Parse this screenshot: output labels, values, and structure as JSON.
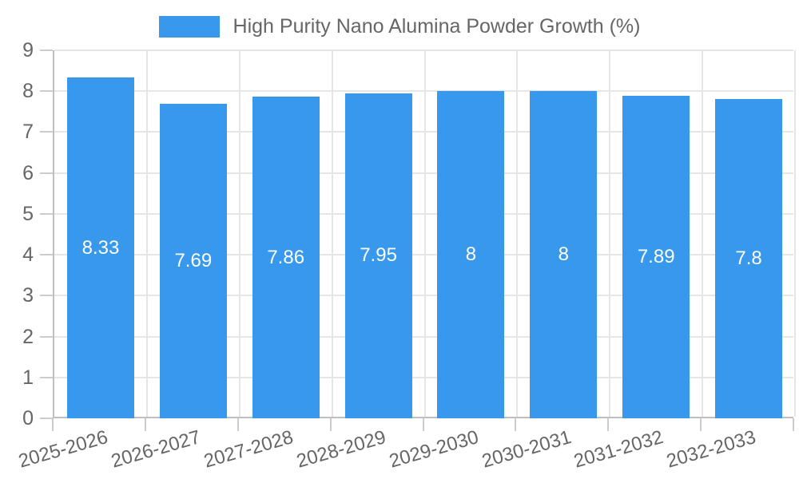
{
  "legend": {
    "swatch_color": "#3899EC",
    "label": "High Purity Nano Alumina Powder Growth (%)"
  },
  "chart_data": {
    "type": "bar",
    "title": "High Purity Nano Alumina Powder Growth (%)",
    "categories": [
      "2025-2026",
      "2026-2027",
      "2027-2028",
      "2028-2029",
      "2029-2030",
      "2030-2031",
      "2031-2032",
      "2032-2033"
    ],
    "series": [
      {
        "name": "High Purity Nano Alumina Powder Growth (%)",
        "values": [
          8.33,
          7.69,
          7.86,
          7.95,
          8,
          8,
          7.89,
          7.8
        ],
        "value_labels": [
          "8.33",
          "7.69",
          "7.86",
          "7.95",
          "8",
          "8",
          "7.89",
          "7.8"
        ],
        "color": "#3899EC"
      }
    ],
    "xlabel": "",
    "ylabel": "",
    "ylim": [
      0,
      9
    ],
    "yticks": [
      0,
      1,
      2,
      3,
      4,
      5,
      6,
      7,
      8,
      9
    ],
    "grid": true,
    "legend_position": "top",
    "value_label_position": "center-of-bar",
    "value_label_color": "#ffffff",
    "x_tick_rotation_deg": -16
  },
  "style": {
    "background": "#ffffff",
    "bar_color": "#3899EC",
    "grid_color": "#e6e6e6",
    "axis_line_color": "#bfbfbf",
    "tick_mark_color": "#cccccc",
    "text_color": "#666666"
  }
}
